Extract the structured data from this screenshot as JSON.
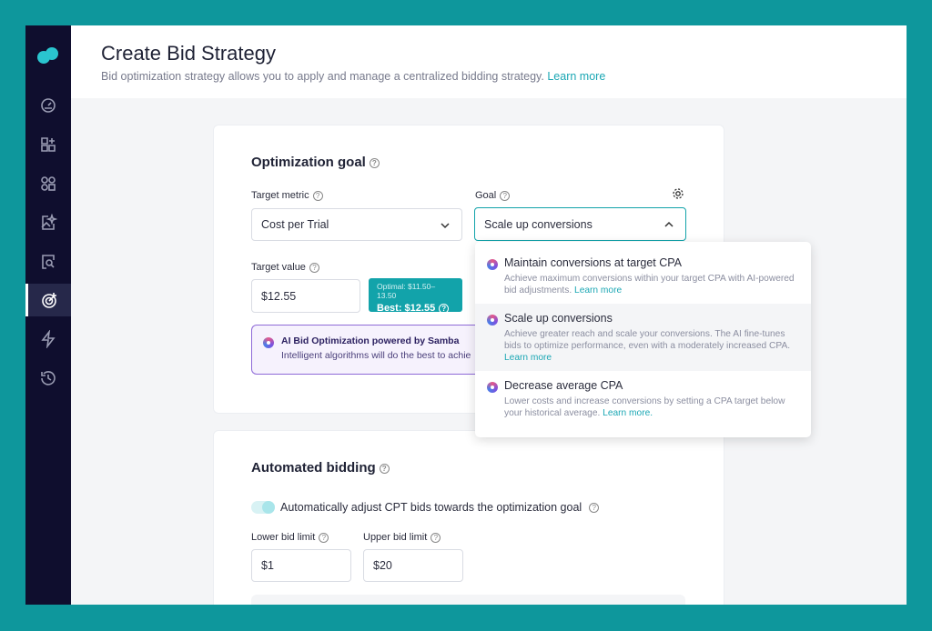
{
  "header": {
    "title": "Create Bid Strategy",
    "subtitle": "Bid optimization strategy allows you to apply and manage a centralized bidding strategy.",
    "learn_more": "Learn more"
  },
  "sidebar": {
    "items": [
      "dashboard-icon",
      "apps-add-icon",
      "integrations-icon",
      "creative-icon",
      "search-ads-icon",
      "target-icon",
      "automation-icon",
      "history-icon"
    ],
    "active": "target-icon"
  },
  "goal_card": {
    "title": "Optimization goal",
    "target_metric_label": "Target metric",
    "target_metric_value": "Cost per Trial",
    "goal_label": "Goal",
    "goal_value": "Scale up conversions",
    "target_value_label": "Target value",
    "target_value": "$12.55",
    "optimal": "Optimal: $11.50–13.50",
    "best": "Best: $12.55",
    "ai_title": "AI Bid Optimization powered by Samba",
    "ai_desc": "Intelligent algorithms will do the best to achie"
  },
  "dropdown": {
    "options": [
      {
        "title": "Maintain conversions at target CPA",
        "desc": "Achieve maximum conversions within your target CPA with AI-powered bid adjustments.",
        "link": "Learn more"
      },
      {
        "title": "Scale up conversions",
        "desc": "Achieve greater reach and scale your conversions. The AI fine-tunes bids to optimize performance, even with a moderately increased CPA.",
        "link": "Learn more"
      },
      {
        "title": "Decrease average CPA",
        "desc": "Lower costs and increase conversions by setting a CPA target below your historical average.",
        "link": "Learn more."
      }
    ]
  },
  "bidding_card": {
    "title": "Automated bidding",
    "toggle_label": "Automatically adjust CPT bids towards the optimization goal",
    "toggle_on": true,
    "lower_label": "Lower bid limit",
    "lower_value": "$1",
    "upper_label": "Upper bid limit",
    "upper_value": "$20"
  },
  "colors": {
    "accent": "#12a3aa",
    "sidebar": "#0f0e2e",
    "frame": "#0e979c"
  }
}
